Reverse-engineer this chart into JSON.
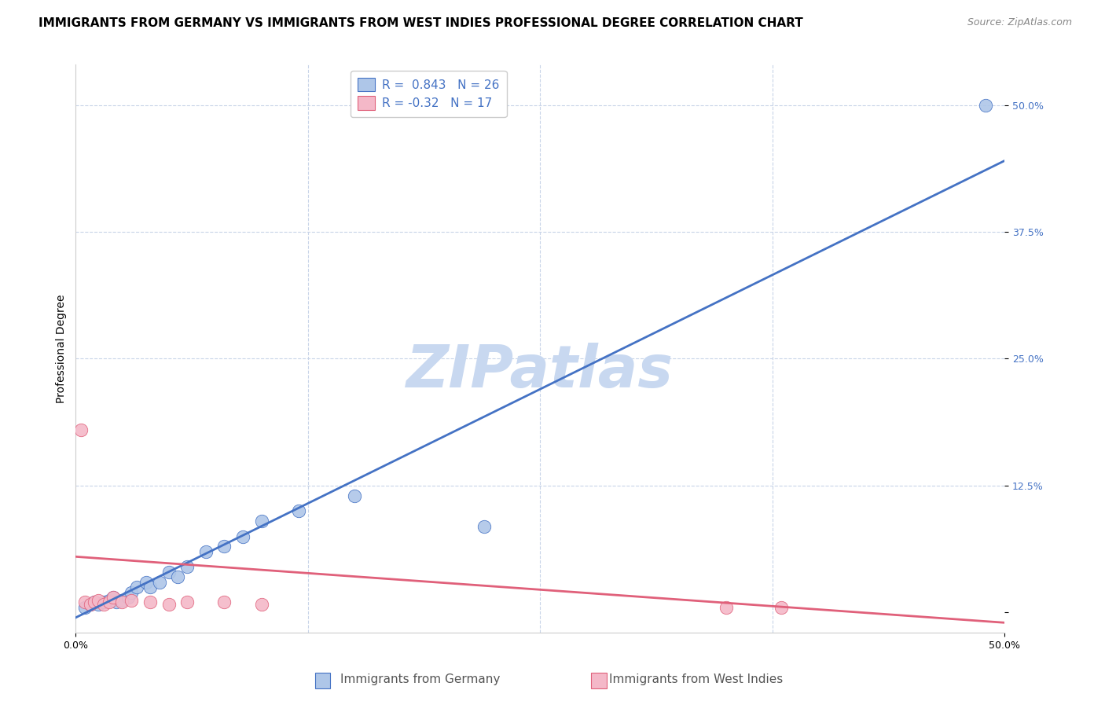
{
  "title": "IMMIGRANTS FROM GERMANY VS IMMIGRANTS FROM WEST INDIES PROFESSIONAL DEGREE CORRELATION CHART",
  "source": "Source: ZipAtlas.com",
  "ylabel": "Professional Degree",
  "yticks": [
    0.0,
    0.125,
    0.25,
    0.375,
    0.5
  ],
  "ytick_labels": [
    "",
    "12.5%",
    "25.0%",
    "37.5%",
    "50.0%"
  ],
  "xlim": [
    0.0,
    0.5
  ],
  "ylim": [
    -0.02,
    0.54
  ],
  "r_blue": 0.843,
  "n_blue": 26,
  "r_pink": -0.32,
  "n_pink": 17,
  "blue_color": "#aec6e8",
  "blue_line_color": "#4472c4",
  "pink_color": "#f4b8c8",
  "pink_line_color": "#e0607a",
  "legend_label_blue": "Immigrants from Germany",
  "legend_label_pink": "Immigrants from West Indies",
  "watermark": "ZIPatlas",
  "watermark_color": "#c8d8f0",
  "blue_scatter_x": [
    0.005,
    0.008,
    0.01,
    0.012,
    0.015,
    0.018,
    0.02,
    0.022,
    0.025,
    0.028,
    0.03,
    0.033,
    0.038,
    0.04,
    0.045,
    0.05,
    0.055,
    0.06,
    0.07,
    0.08,
    0.09,
    0.1,
    0.12,
    0.15,
    0.22,
    0.49
  ],
  "blue_scatter_y": [
    0.005,
    0.008,
    0.01,
    0.008,
    0.01,
    0.012,
    0.015,
    0.01,
    0.012,
    0.015,
    0.02,
    0.025,
    0.03,
    0.025,
    0.03,
    0.04,
    0.035,
    0.045,
    0.06,
    0.065,
    0.075,
    0.09,
    0.1,
    0.115,
    0.085,
    0.5
  ],
  "pink_scatter_x": [
    0.003,
    0.005,
    0.008,
    0.01,
    0.012,
    0.015,
    0.018,
    0.02,
    0.025,
    0.03,
    0.04,
    0.05,
    0.06,
    0.08,
    0.1,
    0.35,
    0.38
  ],
  "pink_scatter_y": [
    0.18,
    0.01,
    0.008,
    0.01,
    0.012,
    0.008,
    0.01,
    0.015,
    0.01,
    0.012,
    0.01,
    0.008,
    0.01,
    0.01,
    0.008,
    0.005,
    0.005
  ],
  "blue_line_x0": 0.0,
  "blue_line_y0": -0.005,
  "blue_line_x1": 0.5,
  "blue_line_y1": 0.445,
  "pink_line_x0": 0.0,
  "pink_line_y0": 0.055,
  "pink_line_x1": 0.5,
  "pink_line_y1": -0.01,
  "title_fontsize": 11,
  "source_fontsize": 9,
  "axis_label_fontsize": 10,
  "tick_fontsize": 9,
  "legend_fontsize": 11,
  "background_color": "#ffffff",
  "grid_color": "#c8d4e8",
  "grid_linestyle": "--",
  "xtick_grid": [
    0.125,
    0.25,
    0.375
  ]
}
